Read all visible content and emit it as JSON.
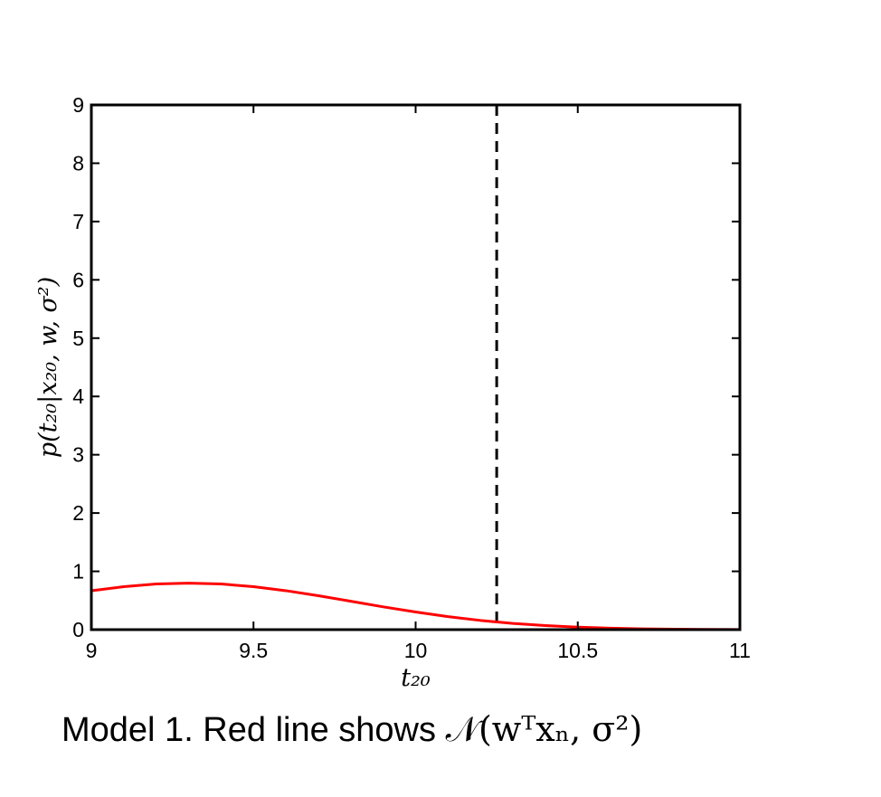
{
  "caption": {
    "text": "Model 1. Red line shows",
    "math": "𝒩(wᵀxₙ, σ²)"
  },
  "colors": {
    "curve": "#ff0000",
    "axes": "#000000",
    "marker_line": "#000000"
  },
  "chart_data": {
    "type": "line",
    "title": "",
    "xlabel": "t₂₀",
    "ylabel": "p(t₂₀|x₂₀, w, σ²)",
    "xlim": [
      9,
      11
    ],
    "ylim": [
      0,
      9
    ],
    "xticks": [
      9,
      9.5,
      10,
      10.5,
      11
    ],
    "xtick_labels": [
      "9",
      "9.5",
      "10",
      "10.5",
      "11"
    ],
    "yticks": [
      0,
      1,
      2,
      3,
      4,
      5,
      6,
      7,
      8,
      9
    ],
    "ytick_labels": [
      "0",
      "1",
      "2",
      "3",
      "4",
      "5",
      "6",
      "7",
      "8",
      "9"
    ],
    "grid": false,
    "series": [
      {
        "style": "solid",
        "color": "#ff0000",
        "x": [
          9.0,
          9.1,
          9.2,
          9.3,
          9.4,
          9.5,
          9.6,
          9.7,
          9.8,
          9.9,
          10.0,
          10.1,
          10.2,
          10.3,
          10.4,
          10.5,
          10.6,
          10.7,
          10.8,
          10.9,
          11.0
        ],
        "y": [
          0.668,
          0.737,
          0.783,
          0.798,
          0.783,
          0.737,
          0.668,
          0.582,
          0.487,
          0.391,
          0.302,
          0.223,
          0.158,
          0.107,
          0.069,
          0.043,
          0.025,
          0.014,
          0.007,
          0.004,
          0.002
        ]
      }
    ],
    "vlines": [
      {
        "x": 10.25,
        "style": "dashed",
        "color": "#000000"
      }
    ]
  }
}
